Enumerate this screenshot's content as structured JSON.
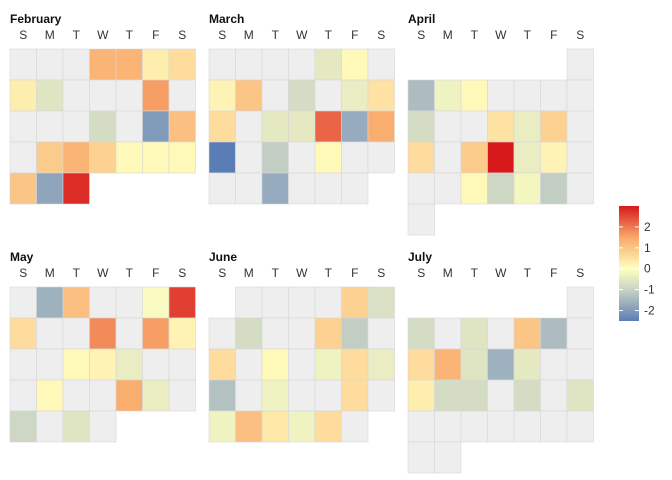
{
  "chart_data": {
    "type": "heatmap",
    "subtype": "calendar",
    "week_start": "Sunday",
    "weekday_labels": [
      "S",
      "M",
      "T",
      "W",
      "T",
      "F",
      "S"
    ],
    "missing_color": "#eeeeee",
    "color_scale": {
      "name": "RdYlBu (reversed)",
      "domain": [
        -2.5,
        3.0
      ],
      "stops": [
        {
          "value": -2.5,
          "color": "#5b7db5"
        },
        {
          "value": -1.0,
          "color": "#c9d3c4"
        },
        {
          "value": 0.0,
          "color": "#ffffbf"
        },
        {
          "value": 1.5,
          "color": "#f9a86a"
        },
        {
          "value": 3.0,
          "color": "#d7191c"
        }
      ]
    },
    "legend": {
      "position": "right",
      "ticks": [
        2,
        1,
        0,
        -1,
        -2
      ],
      "tick_labels": [
        "2",
        "1",
        "0",
        "-1",
        "-2"
      ]
    },
    "months": [
      {
        "name": "February",
        "rows": [
          [
            null,
            null,
            null,
            1.3,
            1.3,
            0.3,
            0.6
          ],
          [
            0.3,
            -0.6,
            null,
            null,
            null,
            1.6,
            null
          ],
          [
            null,
            null,
            null,
            -0.8,
            null,
            -2.0,
            1.1
          ],
          [
            null,
            0.9,
            1.3,
            0.8,
            0.1,
            0.1,
            0.1
          ],
          [
            1.0,
            -1.8,
            2.8
          ]
        ]
      },
      {
        "name": "March",
        "rows": [
          [
            null,
            null,
            null,
            null,
            -0.5,
            0.1,
            null
          ],
          [
            0.2,
            1.0,
            null,
            -0.8,
            null,
            -0.4,
            0.5
          ],
          [
            0.6,
            null,
            -0.5,
            -0.5,
            2.2,
            -1.7,
            1.4
          ],
          [
            -2.5,
            null,
            -1.1,
            null,
            0.1,
            null,
            null
          ],
          [
            null,
            null,
            -1.7,
            null,
            null,
            null
          ]
        ]
      },
      {
        "name": "April",
        "rows": [
          [
            null
          ],
          [
            -1.4,
            -0.3,
            0.1,
            null,
            null,
            null,
            null
          ],
          [
            -0.8,
            null,
            null,
            0.5,
            -0.4,
            0.8,
            null
          ],
          [
            0.6,
            null,
            0.9,
            3.0,
            -0.4,
            0.2,
            null
          ],
          [
            null,
            null,
            0.1,
            -0.9,
            -0.2,
            -1.1,
            null
          ],
          [
            null
          ]
        ]
      },
      {
        "name": "May",
        "rows": [
          [
            null,
            -1.6,
            1.1,
            null,
            null,
            -0.1,
            2.6
          ],
          [
            0.6,
            null,
            null,
            1.8,
            null,
            1.6,
            0.2
          ],
          [
            null,
            null,
            0.1,
            0.2,
            -0.4,
            null,
            null
          ],
          [
            null,
            0.1,
            null,
            null,
            1.4,
            -0.4,
            null
          ],
          [
            -0.9,
            null,
            -0.6,
            null
          ]
        ]
      },
      {
        "name": "June",
        "rows": [
          [
            null,
            null,
            null,
            null,
            0.8,
            -0.7
          ],
          [
            null,
            -0.8,
            null,
            null,
            0.8,
            -1.1,
            null
          ],
          [
            0.6,
            null,
            0.1,
            null,
            -0.3,
            0.6,
            -0.4
          ],
          [
            -1.3,
            null,
            -0.3,
            null,
            null,
            0.6,
            null
          ],
          [
            -0.3,
            1.1,
            0.4,
            -0.3,
            0.6,
            null
          ]
        ]
      },
      {
        "name": "July",
        "rows": [
          [
            null
          ],
          [
            -0.8,
            null,
            -0.6,
            null,
            1.0,
            -1.4,
            null
          ],
          [
            0.6,
            1.3,
            -0.6,
            -1.6,
            -0.5,
            null,
            null
          ],
          [
            0.3,
            -0.8,
            -0.8,
            null,
            -0.8,
            null,
            -0.6
          ],
          [
            null,
            null,
            null,
            null,
            null,
            null,
            null
          ],
          [
            null,
            null
          ]
        ]
      }
    ]
  }
}
